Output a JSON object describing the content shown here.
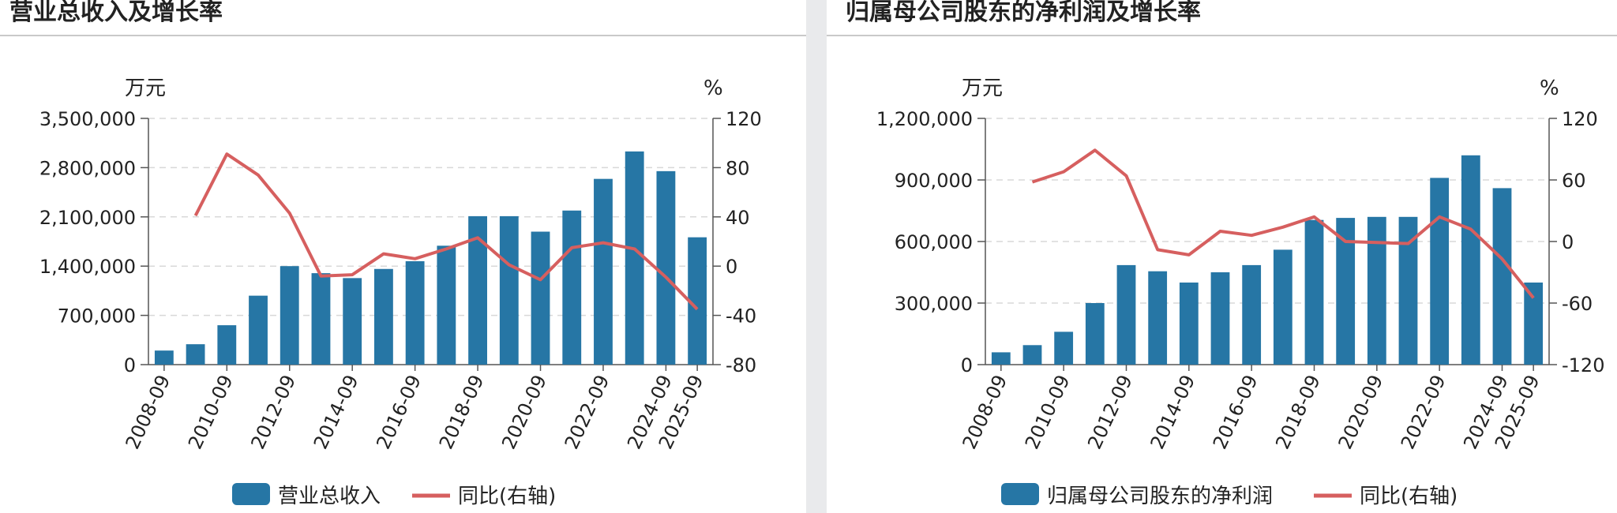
{
  "colors": {
    "bar": "#2676a5",
    "line": "#d65f5f",
    "grid": "#d8d8d8",
    "axis": "#555555"
  },
  "panels": [
    {
      "title": "营业总收入及增长率",
      "chart_data": {
        "type": "bar",
        "title": "营业总收入及增长率",
        "left_unit": "万元",
        "right_unit": "%",
        "categories": [
          "2008-09",
          "2009-09",
          "2010-09",
          "2011-09",
          "2012-09",
          "2013-09",
          "2014-09",
          "2015-09",
          "2016-09",
          "2017-09",
          "2018-09",
          "2019-09",
          "2020-09",
          "2021-09",
          "2022-09",
          "2023-09",
          "2024-09",
          "2025-09"
        ],
        "x_tick_labels": [
          "2008-09",
          "2010-09",
          "2012-09",
          "2014-09",
          "2016-09",
          "2018-09",
          "2020-09",
          "2022-09",
          "2024-09",
          "2025-09"
        ],
        "ylim": [
          0,
          3500000
        ],
        "y_ticks": [
          0,
          700000,
          1400000,
          2100000,
          2800000,
          3500000
        ],
        "y_tick_labels": [
          "0",
          "700,000",
          "1,400,000",
          "2,100,000",
          "2,800,000",
          "3,500,000"
        ],
        "y2lim": [
          -80,
          120
        ],
        "y2_ticks": [
          -80,
          -40,
          0,
          40,
          80,
          120
        ],
        "y2_tick_labels": [
          "-80",
          "-40",
          "0",
          "40",
          "80",
          "120"
        ],
        "grid": true,
        "legend_position": "bottom-center",
        "series": [
          {
            "name": "营业总收入",
            "kind": "bar",
            "axis": "left",
            "values": [
              200000,
              290000,
              560000,
              980000,
              1400000,
              1300000,
              1230000,
              1360000,
              1470000,
              1690000,
              2110000,
              2110000,
              1890000,
              2190000,
              2640000,
              3030000,
              2750000,
              1810000
            ]
          },
          {
            "name": "同比(右轴)",
            "kind": "line",
            "axis": "right",
            "values": [
              null,
              41,
              91,
              74,
              43,
              -8,
              -7,
              10,
              6,
              14,
              23,
              1,
              -11,
              15,
              19,
              14,
              -9,
              -35
            ]
          }
        ]
      }
    },
    {
      "title": "归属母公司股东的净利润及增长率",
      "chart_data": {
        "type": "bar",
        "title": "归属母公司股东的净利润及增长率",
        "left_unit": "万元",
        "right_unit": "%",
        "categories": [
          "2008-09",
          "2009-09",
          "2010-09",
          "2011-09",
          "2012-09",
          "2013-09",
          "2014-09",
          "2015-09",
          "2016-09",
          "2017-09",
          "2018-09",
          "2019-09",
          "2020-09",
          "2021-09",
          "2022-09",
          "2023-09",
          "2024-09",
          "2025-09"
        ],
        "x_tick_labels": [
          "2008-09",
          "2010-09",
          "2012-09",
          "2014-09",
          "2016-09",
          "2018-09",
          "2020-09",
          "2022-09",
          "2024-09",
          "2025-09"
        ],
        "ylim": [
          0,
          1200000
        ],
        "y_ticks": [
          0,
          300000,
          600000,
          900000,
          1200000
        ],
        "y_tick_labels": [
          "0",
          "300,000",
          "600,000",
          "900,000",
          "1,200,000"
        ],
        "y2lim": [
          -120,
          120
        ],
        "y2_ticks": [
          -120,
          -60,
          0,
          60,
          120
        ],
        "y2_tick_labels": [
          "-120",
          "-60",
          "0",
          "60",
          "120"
        ],
        "grid": true,
        "legend_position": "bottom-center",
        "series": [
          {
            "name": "归属母公司股东的净利润",
            "kind": "bar",
            "axis": "left",
            "values": [
              60000,
              95000,
              160000,
              300000,
              485000,
              455000,
              400000,
              450000,
              485000,
              560000,
              705000,
              715000,
              720000,
              720000,
              910000,
              1020000,
              860000,
              400000
            ]
          },
          {
            "name": "同比(右轴)",
            "kind": "line",
            "axis": "right",
            "values": [
              null,
              58,
              68,
              89,
              64,
              -8,
              -13,
              10,
              6,
              14,
              24,
              0,
              -1,
              -2,
              24,
              12,
              -17,
              -55
            ]
          }
        ]
      }
    }
  ]
}
